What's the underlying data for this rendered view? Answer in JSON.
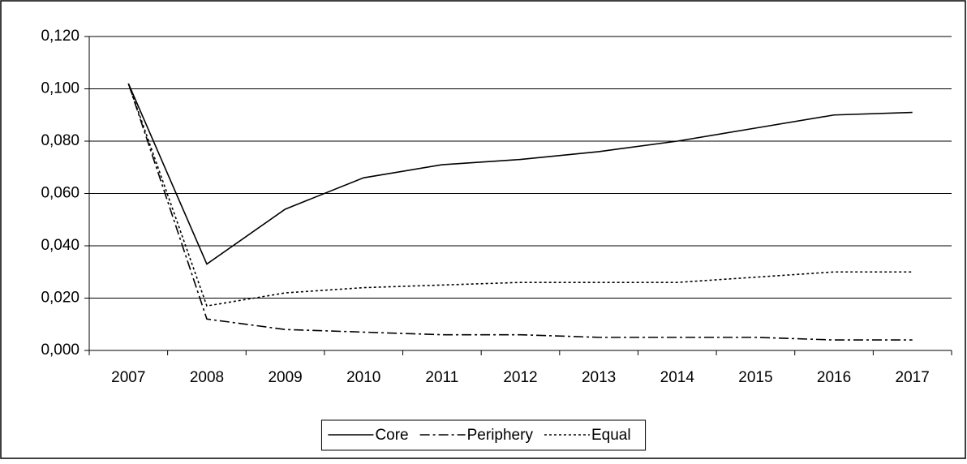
{
  "chart_data": {
    "type": "line",
    "categories": [
      "2007",
      "2008",
      "2009",
      "2010",
      "2011",
      "2012",
      "2013",
      "2014",
      "2015",
      "2016",
      "2017"
    ],
    "series": [
      {
        "name": "Core",
        "color": "#000000",
        "dash": "solid",
        "values": [
          0.102,
          0.033,
          0.054,
          0.066,
          0.071,
          0.073,
          0.076,
          0.08,
          0.085,
          0.09,
          0.091
        ]
      },
      {
        "name": "Periphery",
        "color": "#000000",
        "dash": "dashdot",
        "values": [
          0.102,
          0.012,
          0.008,
          0.007,
          0.006,
          0.006,
          0.005,
          0.005,
          0.005,
          0.004,
          0.004
        ]
      },
      {
        "name": "Equal",
        "color": "#000000",
        "dash": "dotted",
        "values": [
          0.102,
          0.017,
          0.022,
          0.024,
          0.025,
          0.026,
          0.026,
          0.026,
          0.028,
          0.03,
          0.03
        ]
      }
    ],
    "ylim": [
      0,
      0.12
    ],
    "yticks": [
      {
        "value": 0,
        "label": "0,000"
      },
      {
        "value": 0.02,
        "label": "0,020"
      },
      {
        "value": 0.04,
        "label": "0,040"
      },
      {
        "value": 0.06,
        "label": "0,060"
      },
      {
        "value": 0.08,
        "label": "0,080"
      },
      {
        "value": 0.1,
        "label": "0,100"
      },
      {
        "value": 0.12,
        "label": "0,120"
      }
    ],
    "grid": true,
    "legend": "bottom"
  }
}
